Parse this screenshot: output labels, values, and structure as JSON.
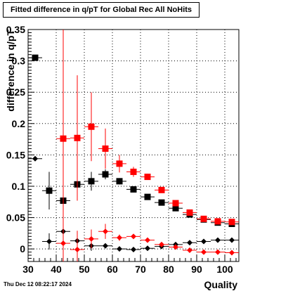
{
  "title": "Fitted difference in q/pT for Global Rec All NoHits",
  "timestamp": "Thu Dec 12 08:22:17 2024",
  "chart_data": {
    "type": "scatter",
    "xlabel": "Quality",
    "ylabel": "difference in q/pT",
    "xlim": [
      30,
      105
    ],
    "ylim": [
      -0.02,
      0.35
    ],
    "x_ticks": [
      30,
      40,
      50,
      60,
      70,
      80,
      90,
      100
    ],
    "y_ticks": [
      0,
      0.05,
      0.1,
      0.15,
      0.2,
      0.25,
      0.3,
      0.35
    ],
    "y_tick_labels": [
      "0",
      "0.05",
      "0.1",
      "0.15",
      "0.2",
      "0.25",
      "0.3",
      "0.35"
    ],
    "grid": true,
    "series": [
      {
        "color": "#000000",
        "marker": "square",
        "points": [
          {
            "x": 32.5,
            "y": 0.305,
            "err": 0.0
          },
          {
            "x": 37.5,
            "y": 0.093,
            "err": 0.03
          },
          {
            "x": 42.5,
            "y": 0.077,
            "err": 0.03
          },
          {
            "x": 47.5,
            "y": 0.103,
            "err": 0.025
          },
          {
            "x": 52.5,
            "y": 0.108,
            "err": 0.015
          },
          {
            "x": 57.5,
            "y": 0.119,
            "err": 0.008
          },
          {
            "x": 62.5,
            "y": 0.108,
            "err": 0.005
          },
          {
            "x": 67.5,
            "y": 0.095,
            "err": 0.004
          },
          {
            "x": 72.5,
            "y": 0.083,
            "err": 0.003
          },
          {
            "x": 77.5,
            "y": 0.074,
            "err": 0.002
          },
          {
            "x": 82.5,
            "y": 0.065,
            "err": 0.002
          },
          {
            "x": 87.5,
            "y": 0.055,
            "err": 0.002
          },
          {
            "x": 92.5,
            "y": 0.047,
            "err": 0.002
          },
          {
            "x": 97.5,
            "y": 0.042,
            "err": 0.002
          },
          {
            "x": 102.5,
            "y": 0.04,
            "err": 0.002
          }
        ]
      },
      {
        "color": "#ff0000",
        "marker": "square",
        "points": [
          {
            "x": 42.5,
            "y": 0.176,
            "err": 0.28
          },
          {
            "x": 47.5,
            "y": 0.177,
            "err": 0.1
          },
          {
            "x": 52.5,
            "y": 0.195,
            "err": 0.055
          },
          {
            "x": 57.5,
            "y": 0.16,
            "err": 0.032
          },
          {
            "x": 62.5,
            "y": 0.136,
            "err": 0.014
          },
          {
            "x": 67.5,
            "y": 0.123,
            "err": 0.008
          },
          {
            "x": 72.5,
            "y": 0.115,
            "err": 0.005
          },
          {
            "x": 77.5,
            "y": 0.094,
            "err": 0.004
          },
          {
            "x": 82.5,
            "y": 0.073,
            "err": 0.003
          },
          {
            "x": 87.5,
            "y": 0.058,
            "err": 0.002
          },
          {
            "x": 92.5,
            "y": 0.048,
            "err": 0.002
          },
          {
            "x": 97.5,
            "y": 0.044,
            "err": 0.002
          },
          {
            "x": 102.5,
            "y": 0.043,
            "err": 0.002
          }
        ]
      },
      {
        "color": "#000000",
        "marker": "diamond",
        "points": [
          {
            "x": 32.5,
            "y": 0.144,
            "err": 0.0
          },
          {
            "x": 37.5,
            "y": 0.012,
            "err": 0.013
          },
          {
            "x": 42.5,
            "y": 0.028,
            "err": 0.015
          },
          {
            "x": 47.5,
            "y": 0.013,
            "err": 0.012
          },
          {
            "x": 52.5,
            "y": 0.005,
            "err": 0.008
          },
          {
            "x": 57.5,
            "y": 0.005,
            "err": 0.004
          },
          {
            "x": 62.5,
            "y": 0.0,
            "err": 0.003
          },
          {
            "x": 67.5,
            "y": -0.001,
            "err": 0.002
          },
          {
            "x": 72.5,
            "y": 0.001,
            "err": 0.002
          },
          {
            "x": 77.5,
            "y": 0.004,
            "err": 0.001
          },
          {
            "x": 82.5,
            "y": 0.007,
            "err": 0.001
          },
          {
            "x": 87.5,
            "y": 0.01,
            "err": 0.001
          },
          {
            "x": 92.5,
            "y": 0.012,
            "err": 0.001
          },
          {
            "x": 97.5,
            "y": 0.014,
            "err": 0.001
          },
          {
            "x": 102.5,
            "y": 0.014,
            "err": 0.001
          }
        ]
      },
      {
        "color": "#ff0000",
        "marker": "diamond",
        "points": [
          {
            "x": 42.5,
            "y": 0.009,
            "err": 0.05
          },
          {
            "x": 47.5,
            "y": -0.001,
            "err": 0.03
          },
          {
            "x": 52.5,
            "y": 0.016,
            "err": 0.015
          },
          {
            "x": 57.5,
            "y": 0.028,
            "err": 0.012
          },
          {
            "x": 62.5,
            "y": 0.018,
            "err": 0.005
          },
          {
            "x": 67.5,
            "y": 0.02,
            "err": 0.003
          },
          {
            "x": 72.5,
            "y": 0.014,
            "err": 0.002
          },
          {
            "x": 77.5,
            "y": 0.007,
            "err": 0.002
          },
          {
            "x": 82.5,
            "y": 0.003,
            "err": 0.001
          },
          {
            "x": 87.5,
            "y": -0.002,
            "err": 0.001
          },
          {
            "x": 92.5,
            "y": -0.005,
            "err": 0.001
          },
          {
            "x": 97.5,
            "y": -0.005,
            "err": 0.001
          },
          {
            "x": 102.5,
            "y": -0.006,
            "err": 0.001
          }
        ]
      }
    ]
  }
}
